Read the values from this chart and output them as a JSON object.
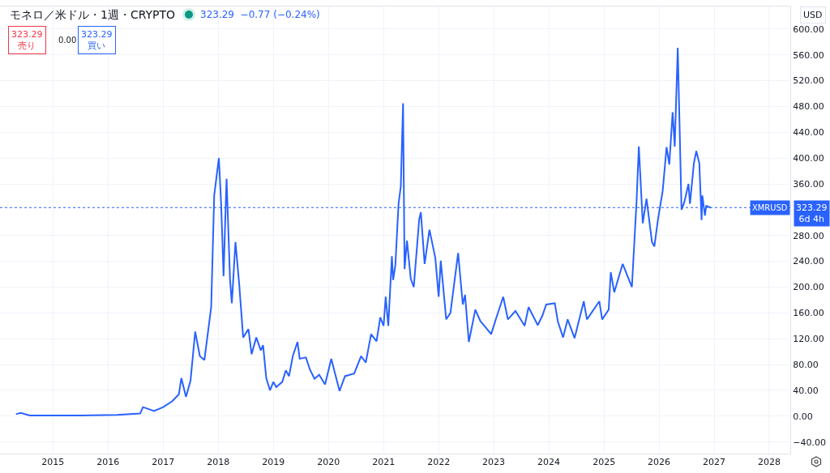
{
  "chart_data": {
    "type": "line",
    "title": "モネロ／米ドル・1週・CRYPTO",
    "annotations": [
      "323.29  −0.77 (−0.24%)",
      "323.29\n売り",
      "0.00",
      "323.29\n買い",
      "USD",
      "323.29\n6d 4h"
    ],
    "x": [
      "2014-05-01",
      "2014-06-01",
      "2014-08-01",
      "2015-07-01",
      "2016-03-01",
      "2016-08-01",
      "2016-08-20",
      "2016-11-01",
      "2017-01-01",
      "2017-03-01",
      "2017-04-15",
      "2017-05-01",
      "2017-06-01",
      "2017-07-01",
      "2017-08-01",
      "2017-09-01",
      "2017-10-01",
      "2017-11-15",
      "2017-12-05",
      "2018-01-05",
      "2018-01-20",
      "2018-02-05",
      "2018-02-15",
      "2018-02-25",
      "2018-03-20",
      "2018-04-01",
      "2018-04-25",
      "2018-05-20",
      "2018-06-01",
      "2018-06-15",
      "2018-07-20",
      "2018-08-10",
      "2018-09-10",
      "2018-10-10",
      "2018-10-25",
      "2018-11-15",
      "2018-12-10",
      "2019-01-01",
      "2019-01-20",
      "2019-03-01",
      "2019-03-25",
      "2019-04-15",
      "2019-05-10",
      "2019-06-10",
      "2019-06-25",
      "2019-08-05",
      "2019-09-01",
      "2019-10-01",
      "2019-11-01",
      "2019-12-10",
      "2020-01-20",
      "2020-03-15",
      "2020-04-20",
      "2020-06-20",
      "2020-08-05",
      "2020-09-05",
      "2020-10-10",
      "2020-11-15",
      "2020-12-10",
      "2021-01-01",
      "2021-01-15",
      "2021-02-01",
      "2021-02-25",
      "2021-03-05",
      "2021-03-20",
      "2021-04-10",
      "2021-04-25",
      "2021-05-10",
      "2021-05-20",
      "2021-06-05",
      "2021-06-30",
      "2021-07-20",
      "2021-08-25",
      "2021-09-05",
      "2021-09-30",
      "2021-11-01",
      "2021-12-10",
      "2022-01-01",
      "2022-01-15",
      "2022-02-20",
      "2022-03-20",
      "2022-05-10",
      "2022-06-10",
      "2022-06-25",
      "2022-07-20",
      "2022-09-01",
      "2022-10-05",
      "2022-11-01",
      "2022-12-15",
      "2023-01-15",
      "2023-03-05",
      "2023-04-05",
      "2023-05-25",
      "2023-07-25",
      "2023-08-20",
      "2023-10-20",
      "2023-11-20",
      "2023-12-15",
      "2024-02-10",
      "2024-03-01",
      "2024-04-05",
      "2024-05-05",
      "2024-06-20",
      "2024-08-20",
      "2024-09-10",
      "2024-12-01",
      "2024-12-20",
      "2025-02-01",
      "2025-02-15",
      "2025-03-10",
      "2025-05-05",
      "2025-07-05",
      "2025-08-05",
      "2025-08-20",
      "2025-09-15",
      "2025-10-10",
      "2025-11-15",
      "2025-12-01",
      "2025-12-25",
      "2026-01-25",
      "2026-02-20",
      "2026-03-10",
      "2026-04-01",
      "2026-04-15",
      "2026-05-05",
      "2026-05-30",
      "2026-06-15",
      "2026-06-25",
      "2026-07-15",
      "2026-07-25",
      "2026-08-20",
      "2026-09-05",
      "2026-09-25",
      "2026-10-10",
      "2026-10-15",
      "2026-11-01",
      "2026-11-10",
      "2026-12-10"
    ],
    "series": [
      {
        "color": "#2962ff",
        "values": [
          3,
          5,
          1,
          1,
          2,
          4,
          14,
          8,
          14,
          23,
          34,
          59,
          30,
          55,
          131,
          93,
          87,
          169,
          342,
          400,
          329,
          217,
          295,
          368,
          211,
          175,
          270,
          204,
          166,
          122,
          135,
          96,
          122,
          102,
          110,
          59,
          40,
          53,
          45,
          53,
          71,
          62,
          93,
          115,
          89,
          91,
          72,
          58,
          64,
          49,
          89,
          39,
          62,
          66,
          93,
          83,
          127,
          116,
          153,
          140,
          185,
          140,
          248,
          211,
          234,
          329,
          356,
          485,
          228,
          272,
          213,
          200,
          305,
          316,
          236,
          289,
          245,
          185,
          241,
          150,
          160,
          253,
          173,
          188,
          115,
          165,
          147,
          140,
          127,
          150,
          185,
          150,
          163,
          140,
          169,
          141,
          156,
          173,
          175,
          147,
          122,
          150,
          121,
          178,
          150,
          178,
          150,
          165,
          223,
          192,
          236,
          200,
          333,
          418,
          299,
          337,
          270,
          263,
          305,
          349,
          417,
          390,
          471,
          418,
          571,
          320,
          330,
          339,
          360,
          329,
          392,
          411,
          392,
          304,
          342,
          311,
          326,
          323
        ]
      }
    ],
    "xlim": [
      "2014-01-15",
      "2028-05-20"
    ],
    "xticks": [
      {
        "value": "2015",
        "label": "2015"
      },
      {
        "value": "2016",
        "label": "2016"
      },
      {
        "value": "2017",
        "label": "2017"
      },
      {
        "value": "2018",
        "label": "2018"
      },
      {
        "value": "2019",
        "label": "2019"
      },
      {
        "value": "2020",
        "label": "2020"
      },
      {
        "value": "2021",
        "label": "2021"
      },
      {
        "value": "2022",
        "label": "2022"
      },
      {
        "value": "2023",
        "label": "2023"
      },
      {
        "value": "2024",
        "label": "2024"
      },
      {
        "value": "2025",
        "label": "2025"
      },
      {
        "value": "2026",
        "label": "2026"
      },
      {
        "value": "2027",
        "label": "2027"
      },
      {
        "value": "2028",
        "label": "2028"
      }
    ],
    "ylim": [
      -58,
      635
    ],
    "yticks": [
      {
        "value": -40,
        "label": "−40.00"
      },
      {
        "value": 0,
        "label": "0.00"
      },
      {
        "value": 40,
        "label": "40.00"
      },
      {
        "value": 80,
        "label": "80.00"
      },
      {
        "value": 120,
        "label": "120.00"
      },
      {
        "value": 160,
        "label": "160.00"
      },
      {
        "value": 200,
        "label": "200.00"
      },
      {
        "value": 240,
        "label": "240.00"
      },
      {
        "value": 280,
        "label": "280.00"
      },
      {
        "value": 360,
        "label": "360.00"
      },
      {
        "value": 400,
        "label": "400.00"
      },
      {
        "value": 440,
        "label": "440.00"
      },
      {
        "value": 480,
        "label": "480.00"
      },
      {
        "value": 520,
        "label": "520.00"
      },
      {
        "value": 560,
        "label": "560.00"
      },
      {
        "value": 600,
        "label": "600.00"
      }
    ],
    "ref_lines": [
      {
        "axis": "y",
        "value": 323.29,
        "label": "XMRUSD",
        "color": "#2962ff",
        "line_style": "dotted"
      }
    ],
    "grid": true,
    "marker": "none",
    "line_style": "solid"
  }
}
